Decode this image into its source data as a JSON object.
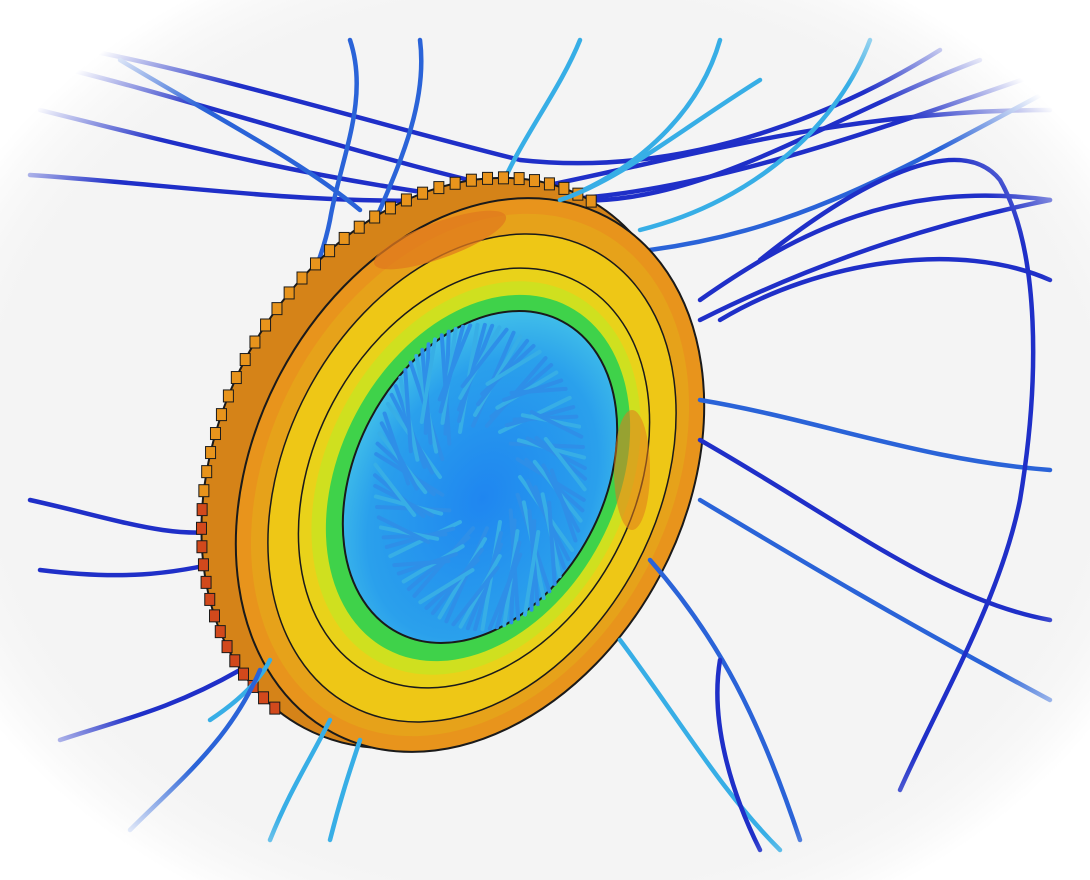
{
  "scene": {
    "background_color": "#f4f4f4",
    "frame_color": "#ffffff",
    "subject": "ventilated-brake-disc",
    "streamline_colors": {
      "deep": "#1f2fc8",
      "mid": "#2a63d8",
      "light": "#37aee6",
      "core": "#2e8fe8"
    },
    "temperature_palette": {
      "hot": "#e0641e",
      "warm": "#e8941c",
      "mild": "#eec716",
      "cool": "#c9e01f",
      "cold": "#3fd24a",
      "core": "#1bb2a8"
    },
    "outline_color": "#1a1a1a"
  }
}
